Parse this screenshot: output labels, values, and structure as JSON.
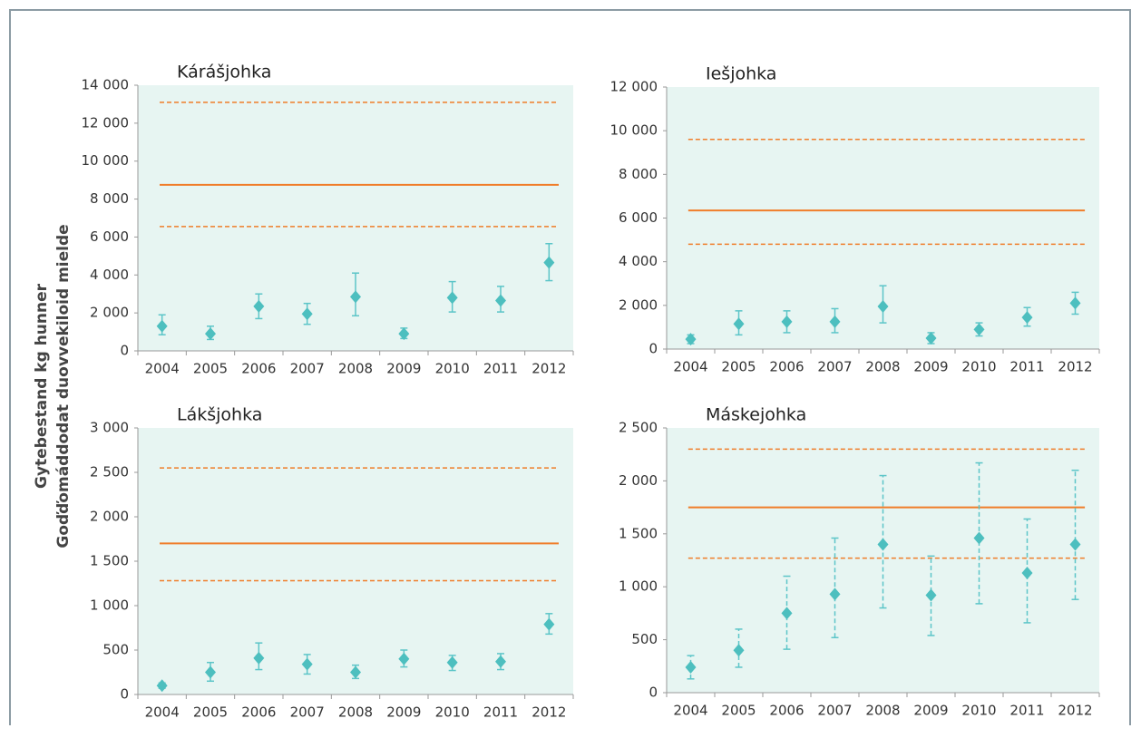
{
  "ylabel": [
    "Gytebestand kg hunner",
    "Goďďomáddodat duovvekiloid mielde"
  ],
  "chart_data": [
    {
      "type": "errorbar",
      "title": "Kárášjohka",
      "categories": [
        "2004",
        "2005",
        "2006",
        "2007",
        "2008",
        "2009",
        "2010",
        "2011",
        "2012"
      ],
      "values": [
        1300,
        900,
        2350,
        1950,
        2850,
        900,
        2800,
        2650,
        4650
      ],
      "lower": [
        850,
        600,
        1700,
        1400,
        1850,
        650,
        2050,
        2050,
        3700
      ],
      "upper": [
        1900,
        1300,
        3000,
        2500,
        4100,
        1200,
        3650,
        3400,
        5650
      ],
      "color": "#4dbfbf",
      "error_style": "solid",
      "reference_lines": [
        {
          "value": 13100,
          "style": "dashed"
        },
        {
          "value": 8750,
          "style": "solid"
        },
        {
          "value": 6550,
          "style": "dashed"
        }
      ],
      "reference_color": "#f07d2a",
      "ylim": [
        0,
        14000
      ],
      "yticks": [
        0,
        {
          "value": 2000,
          "label": "2 000"
        },
        {
          "value": 4000,
          "label": "4 000"
        },
        {
          "value": 6000,
          "label": "6 000"
        },
        {
          "value": 8000,
          "label": "8 000"
        },
        {
          "value": 10000,
          "label": "10 000"
        },
        {
          "value": 12000,
          "label": "12 000"
        },
        {
          "value": 14000,
          "label": "14 000"
        }
      ]
    },
    {
      "type": "errorbar",
      "title": "Iešjohka",
      "categories": [
        "2004",
        "2005",
        "2006",
        "2007",
        "2008",
        "2009",
        "2010",
        "2011",
        "2012"
      ],
      "values": [
        450,
        1150,
        1250,
        1250,
        1950,
        500,
        900,
        1450,
        2100
      ],
      "lower": [
        250,
        650,
        750,
        750,
        1200,
        250,
        600,
        1050,
        1600
      ],
      "upper": [
        650,
        1750,
        1750,
        1850,
        2900,
        750,
        1200,
        1900,
        2600
      ],
      "color": "#4dbfbf",
      "error_style": "solid",
      "reference_lines": [
        {
          "value": 9600,
          "style": "dashed"
        },
        {
          "value": 6350,
          "style": "solid"
        },
        {
          "value": 4800,
          "style": "dashed"
        }
      ],
      "reference_color": "#f07d2a",
      "ylim": [
        0,
        12000
      ],
      "yticks": [
        0,
        {
          "value": 2000,
          "label": "2 000"
        },
        {
          "value": 4000,
          "label": "4 000"
        },
        {
          "value": 6000,
          "label": "6 000"
        },
        {
          "value": 8000,
          "label": "8 000"
        },
        {
          "value": 10000,
          "label": "10 000"
        },
        {
          "value": 12000,
          "label": "12 000"
        }
      ]
    },
    {
      "type": "errorbar",
      "title": "Lákšjohka",
      "categories": [
        "2004",
        "2005",
        "2006",
        "2007",
        "2008",
        "2009",
        "2010",
        "2011",
        "2012"
      ],
      "values": [
        100,
        250,
        410,
        340,
        250,
        400,
        360,
        370,
        790
      ],
      "lower": [
        70,
        150,
        280,
        230,
        180,
        310,
        270,
        280,
        680
      ],
      "upper": [
        130,
        360,
        580,
        450,
        330,
        500,
        440,
        460,
        910
      ],
      "color": "#4dbfbf",
      "error_style": "solid",
      "reference_lines": [
        {
          "value": 2550,
          "style": "dashed"
        },
        {
          "value": 1700,
          "style": "solid"
        },
        {
          "value": 1280,
          "style": "dashed"
        }
      ],
      "reference_color": "#f07d2a",
      "ylim": [
        0,
        3000
      ],
      "yticks": [
        0,
        500,
        {
          "value": 1000,
          "label": "1 000"
        },
        {
          "value": 1500,
          "label": "1 500"
        },
        {
          "value": 2000,
          "label": "2 000"
        },
        {
          "value": 2500,
          "label": "2 500"
        },
        {
          "value": 3000,
          "label": "3 000"
        }
      ]
    },
    {
      "type": "errorbar",
      "title": "Máskejohka",
      "categories": [
        "2004",
        "2005",
        "2006",
        "2007",
        "2008",
        "2009",
        "2010",
        "2011",
        "2012"
      ],
      "values": [
        240,
        400,
        750,
        930,
        1400,
        920,
        1460,
        1130,
        1400
      ],
      "lower": [
        130,
        240,
        410,
        520,
        800,
        540,
        840,
        660,
        880
      ],
      "upper": [
        350,
        600,
        1100,
        1460,
        2050,
        1290,
        2170,
        1640,
        2100
      ],
      "color": "#4dbfbf",
      "error_style": "dashed",
      "reference_lines": [
        {
          "value": 2300,
          "style": "dashed"
        },
        {
          "value": 1750,
          "style": "solid"
        },
        {
          "value": 1270,
          "style": "dashed"
        }
      ],
      "reference_color": "#f07d2a",
      "ylim": [
        0,
        2500
      ],
      "yticks": [
        0,
        500,
        {
          "value": 1000,
          "label": "1 000"
        },
        {
          "value": 1500,
          "label": "1 500"
        },
        {
          "value": 2000,
          "label": "2 000"
        },
        {
          "value": 2500,
          "label": "2 500"
        }
      ]
    }
  ]
}
